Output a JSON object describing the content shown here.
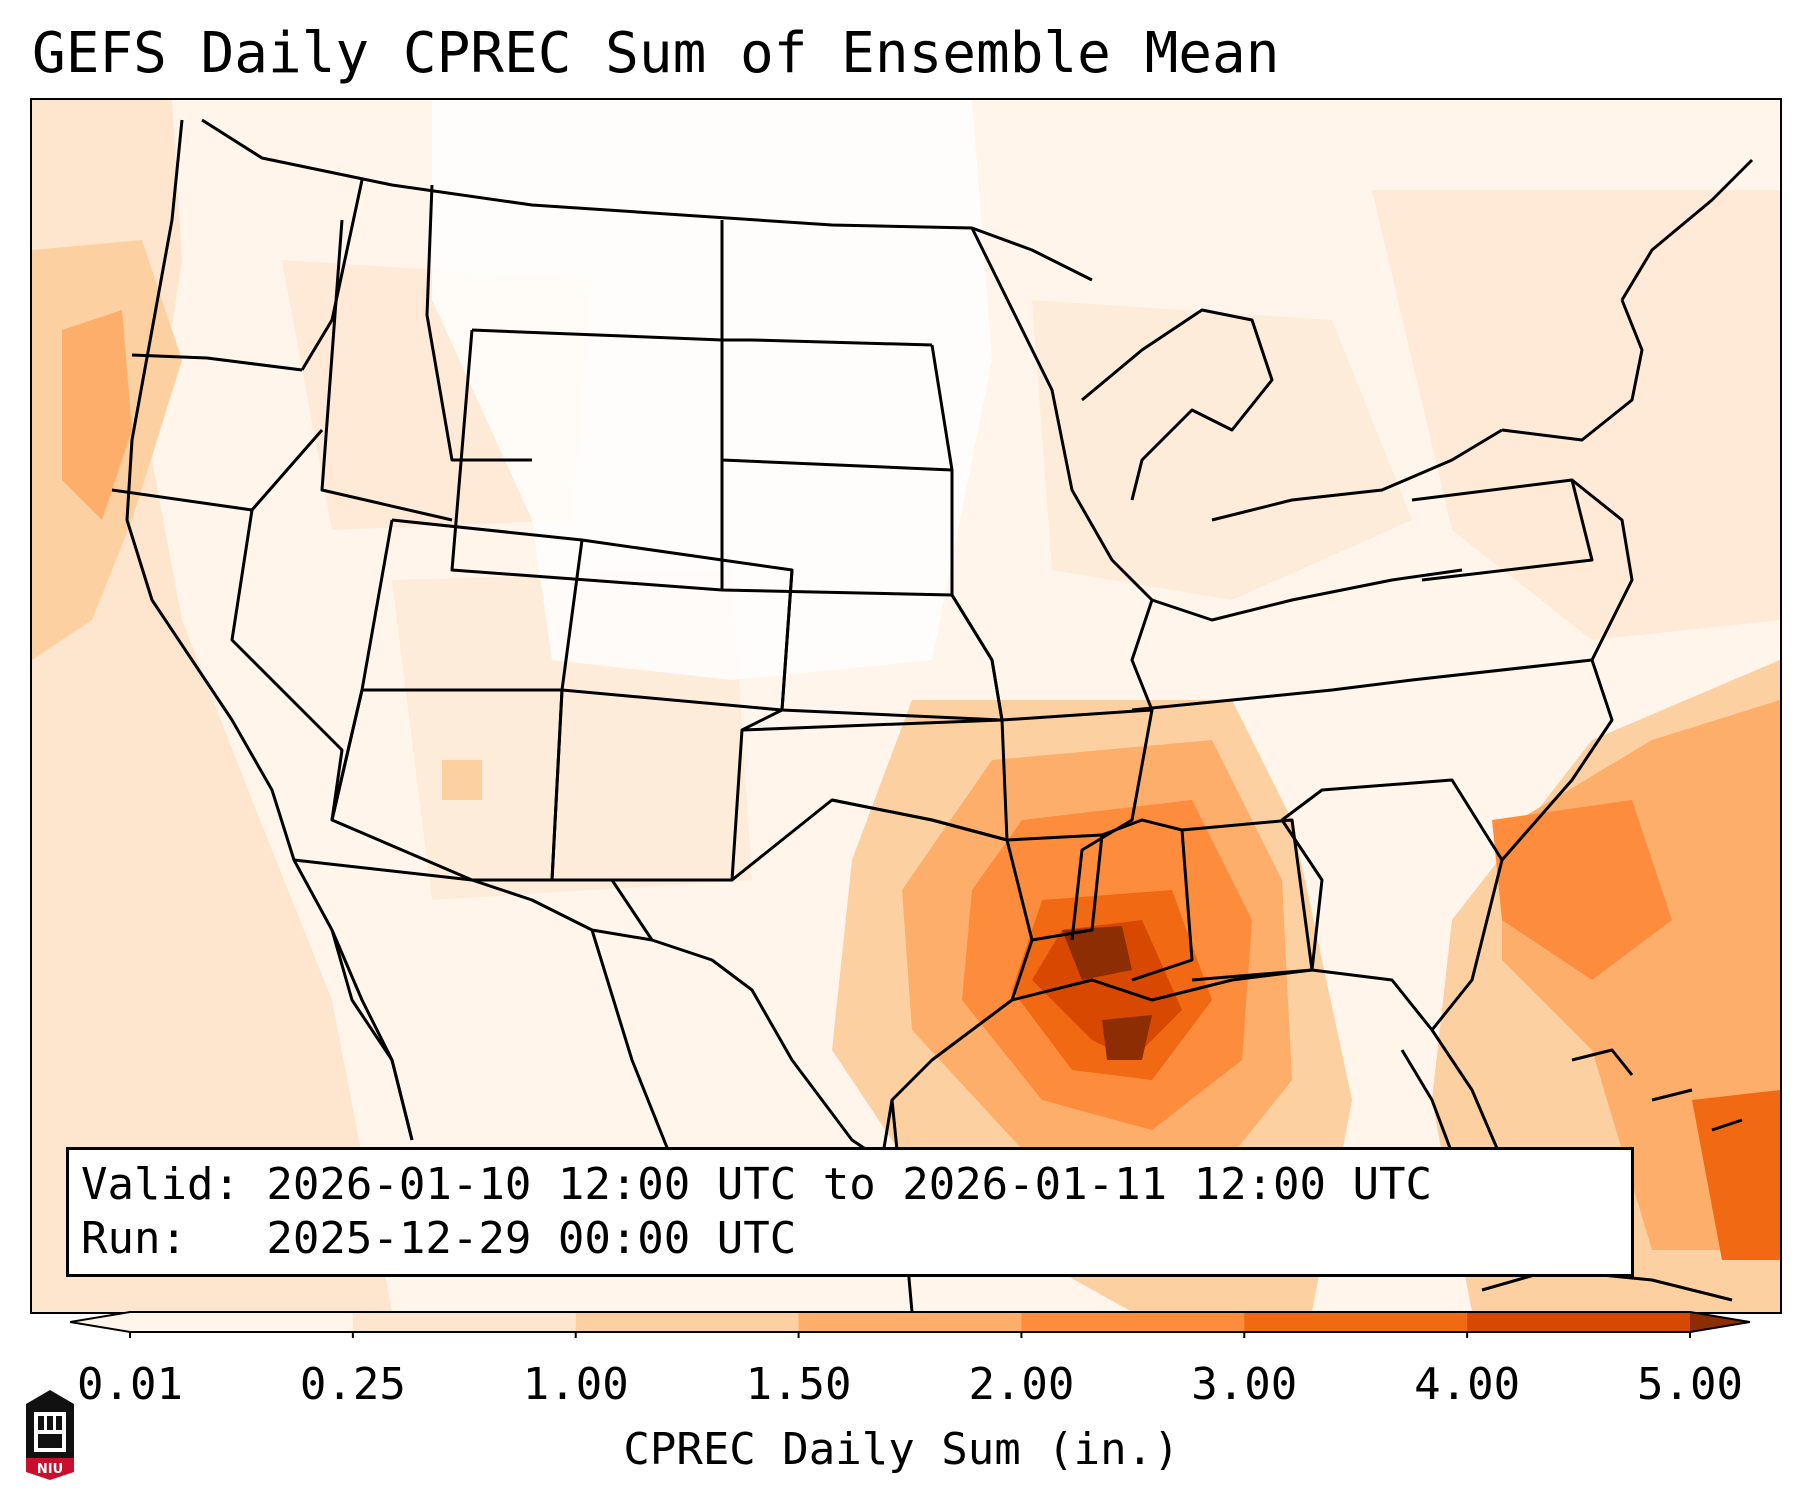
{
  "title": "GEFS Daily CPREC Sum of Ensemble Mean",
  "valid_box": {
    "valid_line": "Valid: 2026-01-10 12:00 UTC to 2026-01-11 12:00 UTC",
    "run_line": "Run:   2025-12-29 00:00 UTC"
  },
  "colorbar": {
    "label": "CPREC Daily Sum (in.)",
    "ticks": [
      "0.01",
      "0.25",
      "1.00",
      "1.50",
      "2.00",
      "3.00",
      "4.00",
      "5.00"
    ],
    "colors": [
      "#fff5eb",
      "#fee6ce",
      "#fdd0a2",
      "#fdae6b",
      "#fd8d3c",
      "#f16913",
      "#d94801",
      "#8c2d04"
    ],
    "extend": "both"
  },
  "logo": {
    "text": "NIU",
    "colors": {
      "red": "#c8102e",
      "black": "#000000"
    }
  },
  "map": {
    "projection": "Lambert Conformal, contiguous United States",
    "field": "CPREC daily sum, ensemble mean",
    "maximum_region": "Louisiana / northern Gulf of Mexico",
    "colors": {
      "max": "#8c2d04",
      "high": "#d94801",
      "mid": "#f16913",
      "low": "#fdae6b"
    }
  }
}
